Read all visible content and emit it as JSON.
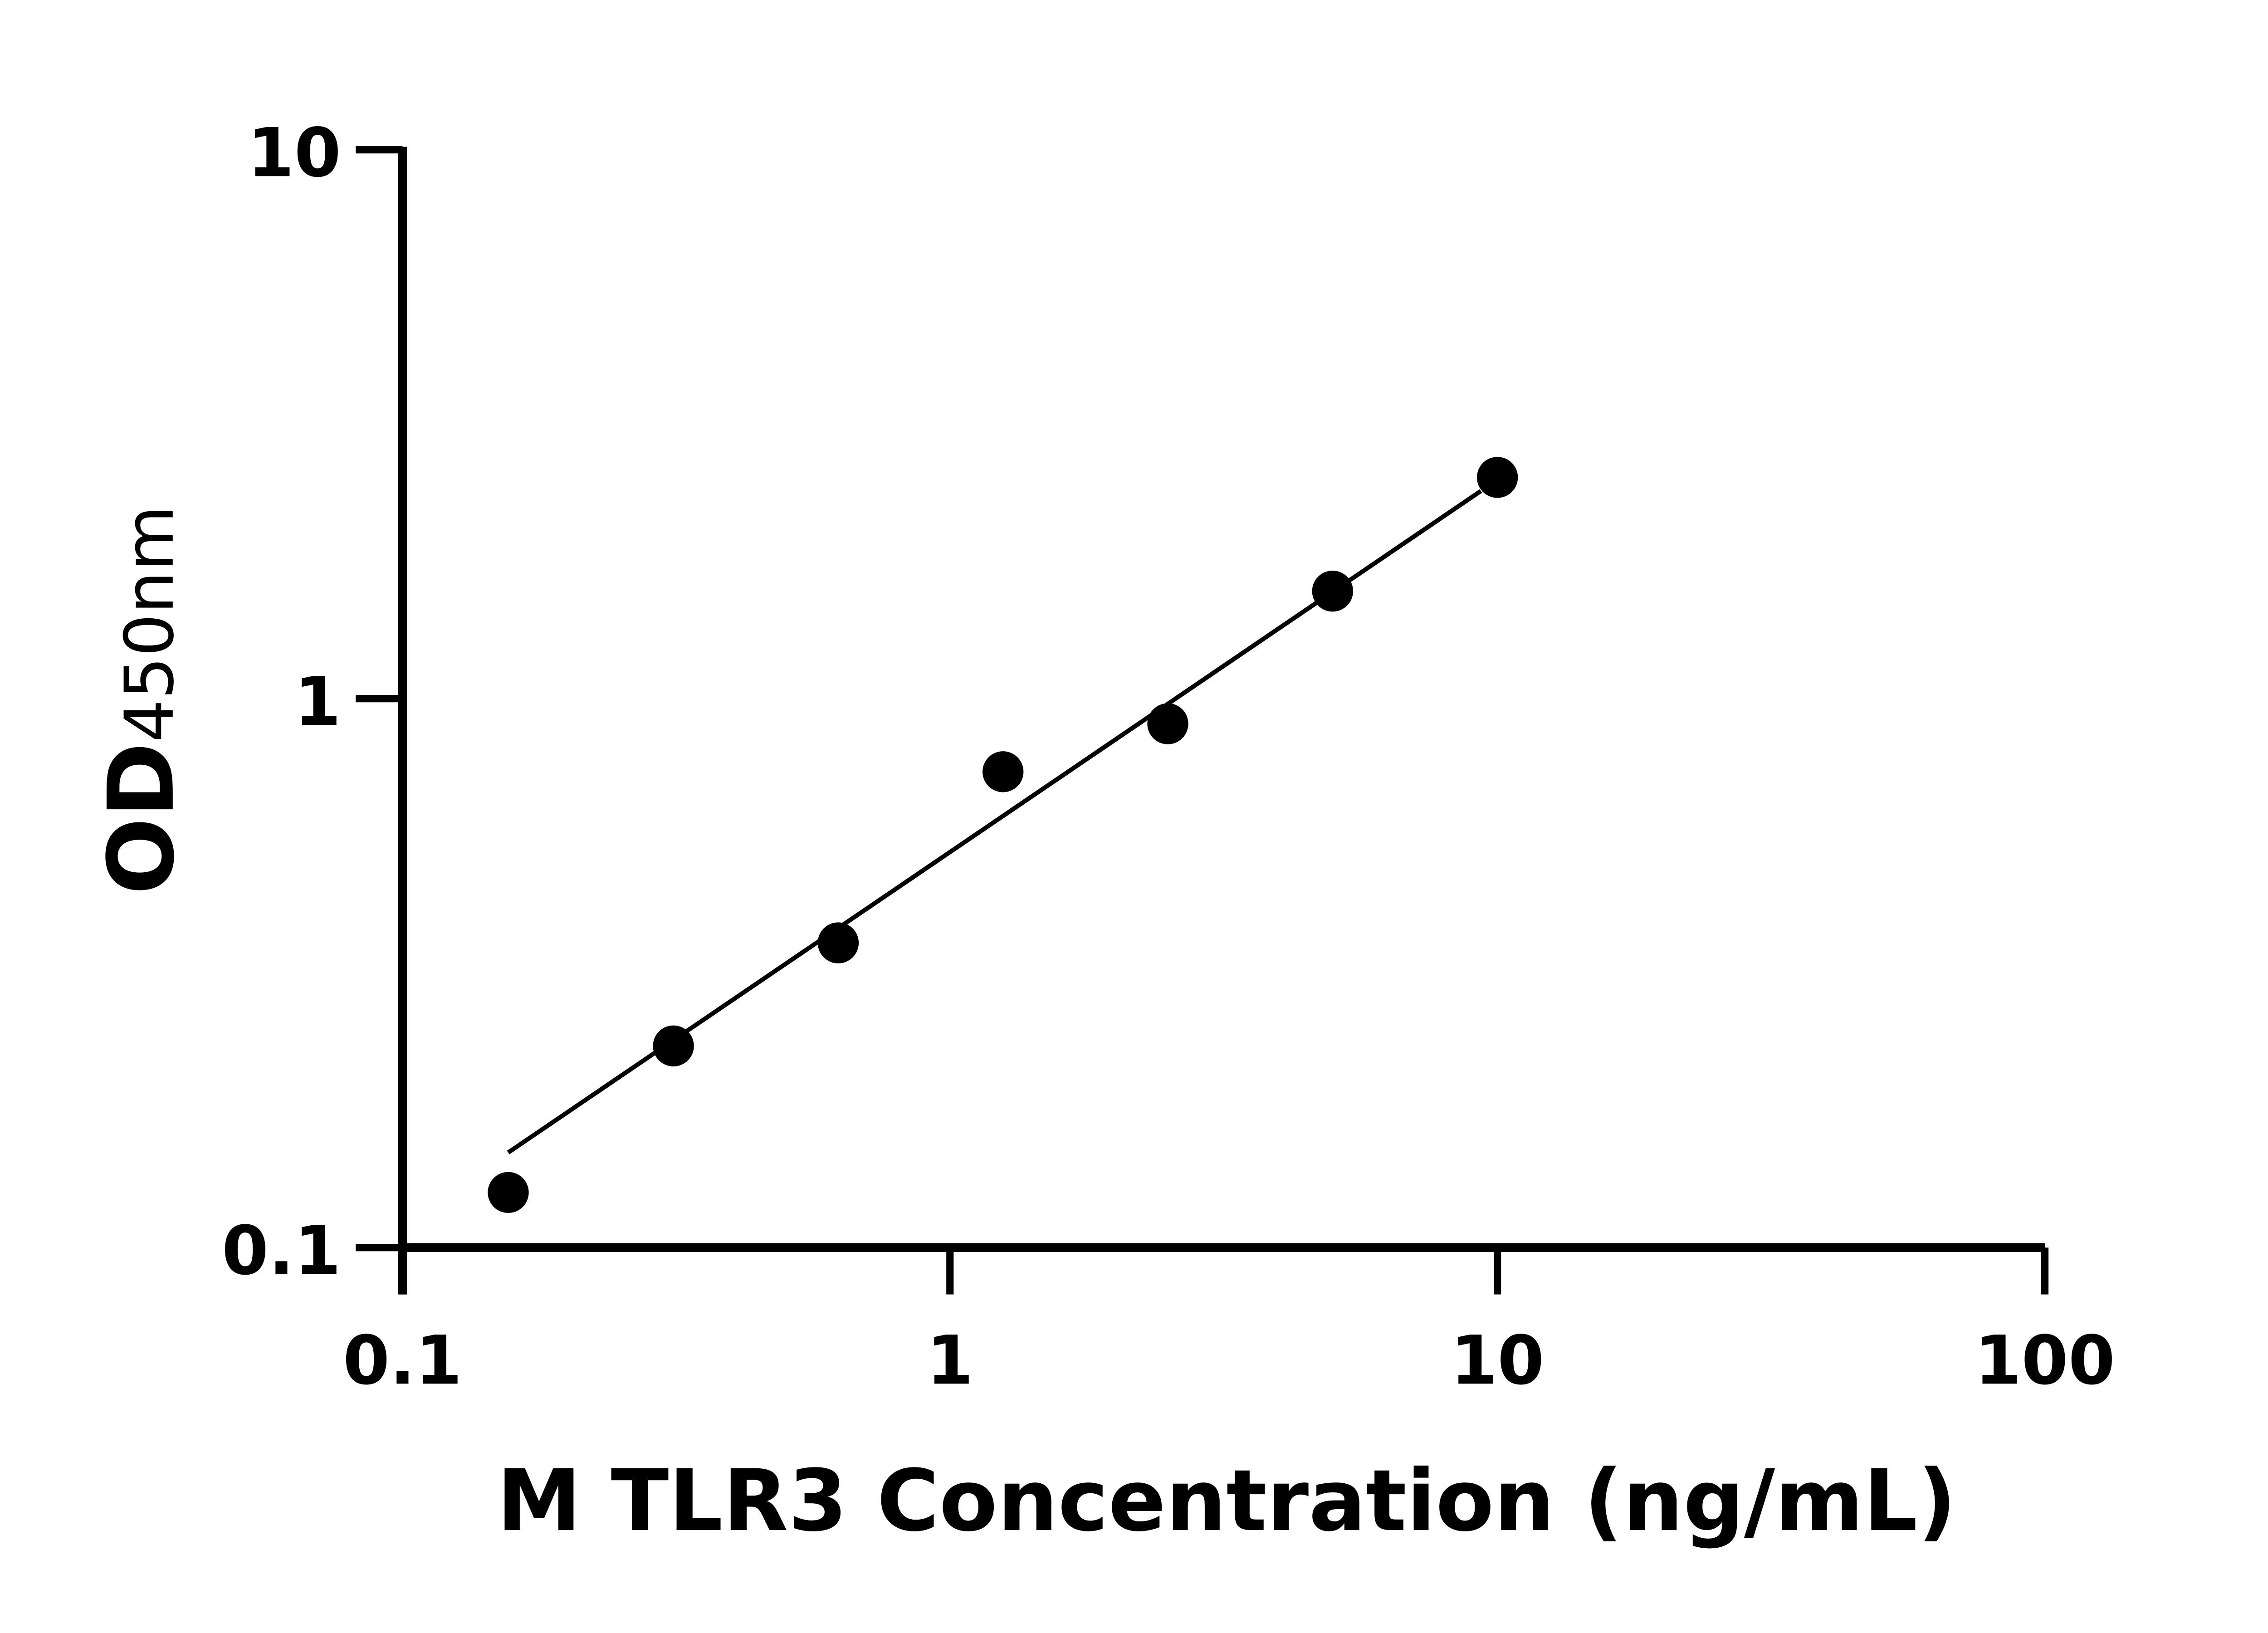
{
  "chart_data": {
    "type": "scatter",
    "title": "",
    "xlabel": "M TLR3 Concentration (ng/mL)",
    "ylabel_main": "OD",
    "ylabel_sub": "450nm",
    "x_scale": "log",
    "y_scale": "log",
    "xlim": [
      0.1,
      100
    ],
    "ylim": [
      0.1,
      10
    ],
    "x_ticks": [
      "0.1",
      "1",
      "10",
      "100"
    ],
    "y_ticks": [
      "0.1",
      "1",
      "10"
    ],
    "x_tick_values": [
      0.1,
      1,
      10,
      100
    ],
    "y_tick_values": [
      0.1,
      1,
      10
    ],
    "grid": false,
    "legend": "none",
    "points": {
      "x": [
        0.156,
        0.3125,
        0.625,
        1.25,
        2.5,
        5,
        10
      ],
      "y": [
        0.126,
        0.233,
        0.359,
        0.736,
        0.9,
        1.57,
        2.53
      ]
    },
    "fit_line": {
      "x": [
        0.156,
        9.33
      ],
      "y": [
        0.149,
        2.39
      ]
    },
    "colors": {
      "marks": "#000000",
      "background": "#ffffff"
    }
  }
}
